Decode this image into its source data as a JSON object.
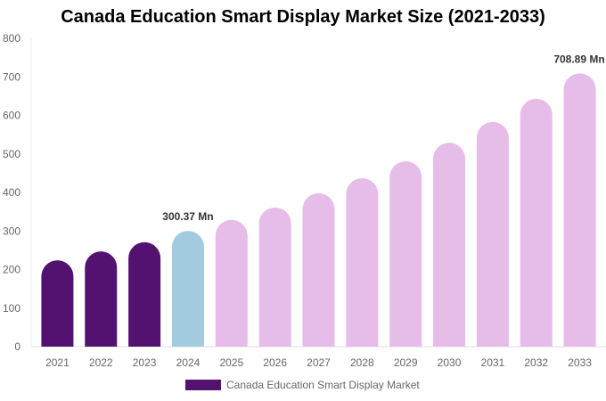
{
  "chart_data": {
    "type": "bar",
    "title": "Canada Education Smart Display Market Size (2021-2033)",
    "categories": [
      "2021",
      "2022",
      "2023",
      "2024",
      "2025",
      "2026",
      "2027",
      "2028",
      "2029",
      "2030",
      "2031",
      "2032",
      "2033"
    ],
    "series": [
      {
        "name": "Canada Education Smart Display Market",
        "values": [
          224,
          247,
          271,
          300.37,
          329,
          361,
          398,
          437,
          481,
          529,
          583,
          643,
          708.89
        ]
      }
    ],
    "bar_colors": [
      "#541270",
      "#541270",
      "#541270",
      "#a3cbe0",
      "#e6bce9",
      "#e6bce9",
      "#e6bce9",
      "#e6bce9",
      "#e6bce9",
      "#e6bce9",
      "#e6bce9",
      "#e6bce9",
      "#e6bce9"
    ],
    "data_labels": {
      "3": "300.37 Mn",
      "12": "708.89 Mn"
    },
    "yticks": [
      0,
      100,
      200,
      300,
      400,
      500,
      600,
      700,
      800
    ],
    "ylim": [
      0,
      800
    ],
    "xlabel": "",
    "ylabel": "",
    "grid": false,
    "legend_position": "bottom",
    "legend_color": "#541270"
  }
}
